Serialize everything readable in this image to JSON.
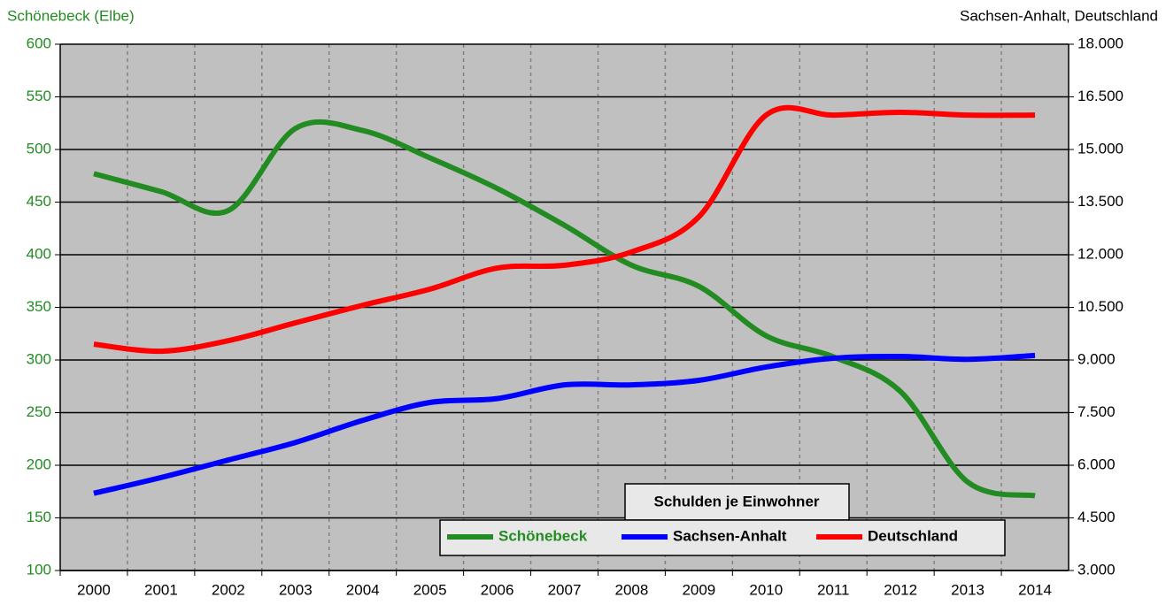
{
  "chart_data": {
    "type": "line",
    "y_label": "Schönebeck (Elbe)",
    "y2_label": "Sachsen-Anhalt, Deutschland",
    "legend_title": "Schulden je Einwohner",
    "categories": [
      "2000",
      "2001",
      "2002",
      "2003",
      "2004",
      "2005",
      "2006",
      "2007",
      "2008",
      "2009",
      "2010",
      "2011",
      "2012",
      "2013",
      "2014"
    ],
    "series": [
      {
        "name": "Schönebeck",
        "color": "#228b22",
        "values": [
          477,
          460,
          442,
          520,
          518,
          492,
          463,
          428,
          390,
          370,
          323,
          303,
          270,
          184,
          171
        ]
      },
      {
        "name": "Sachsen-Anhalt",
        "color": "#0000ff",
        "axis": "y2",
        "values": [
          5200,
          5650,
          6150,
          6650,
          7280,
          7790,
          7900,
          8290,
          8290,
          8420,
          8800,
          9050,
          9100,
          9020,
          9130
        ]
      },
      {
        "name": "Deutschland",
        "color": "#ff0000",
        "axis": "y2",
        "values": [
          9450,
          9250,
          9550,
          10060,
          10560,
          11020,
          11620,
          11700,
          12080,
          13080,
          15980,
          15980,
          16060,
          15980,
          15980
        ]
      }
    ],
    "ylim": [
      100,
      600
    ],
    "yticks": [
      100,
      150,
      200,
      250,
      300,
      350,
      400,
      450,
      500,
      550,
      600
    ],
    "y2lim": [
      3000,
      18000
    ],
    "y2ticks": [
      {
        "value": 3000,
        "label": "3.000"
      },
      {
        "value": 4500,
        "label": "4.500"
      },
      {
        "value": 6000,
        "label": "6.000"
      },
      {
        "value": 7500,
        "label": "7.500"
      },
      {
        "value": 9000,
        "label": "9.000"
      },
      {
        "value": 10500,
        "label": "10.500"
      },
      {
        "value": 12000,
        "label": "12.000"
      },
      {
        "value": 13500,
        "label": "13.500"
      },
      {
        "value": 15000,
        "label": "15.000"
      },
      {
        "value": 16500,
        "label": "16.500"
      },
      {
        "value": 18000,
        "label": "18.000"
      }
    ],
    "grid": true
  }
}
